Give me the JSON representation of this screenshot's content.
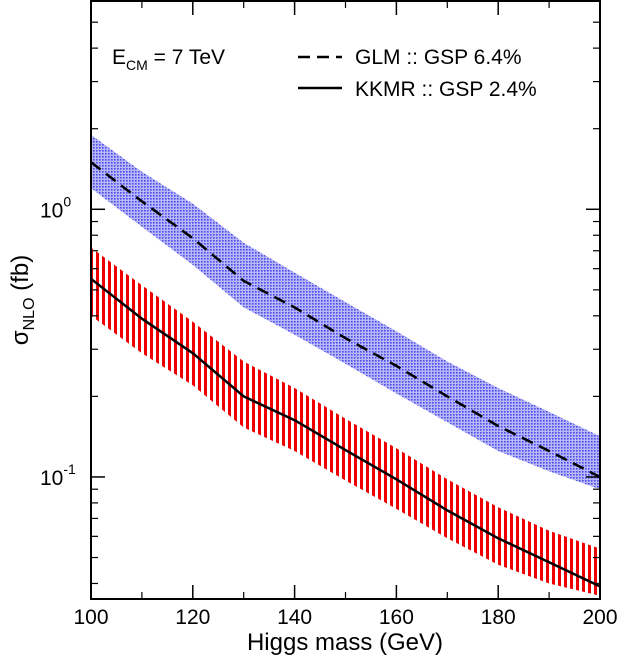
{
  "chart_data": {
    "type": "line",
    "xlabel": "Higgs mass (GeV)",
    "ylabel_symbol": "σ",
    "ylabel_sub": "NLO",
    "ylabel_unit": " (fb)",
    "annotation": {
      "main": "E",
      "sub": "CM",
      "rest": " = 7 TeV"
    },
    "x_range": [
      100,
      200
    ],
    "y_range": [
      0.035,
      6.0
    ],
    "y_scale": "log",
    "x_ticks": [
      100,
      120,
      140,
      160,
      180,
      200
    ],
    "y_major_ticks": [
      {
        "value": 1.0,
        "base": "10",
        "exp": "0"
      },
      {
        "value": 0.1,
        "base": "10",
        "exp": "-1"
      }
    ],
    "legend_position": "top-right",
    "series": [
      {
        "name": "GLM :: GSP 6.4%",
        "line_style": "dashed",
        "color": "#000000",
        "band_color": "#5a5af0",
        "band_style": "dotted",
        "x": [
          100,
          110,
          120,
          130,
          140,
          150,
          160,
          170,
          180,
          190,
          200
        ],
        "y": [
          1.5,
          1.07,
          0.78,
          0.54,
          0.43,
          0.33,
          0.26,
          0.2,
          0.155,
          0.125,
          0.1
        ],
        "upper": [
          1.9,
          1.38,
          1.05,
          0.75,
          0.58,
          0.45,
          0.35,
          0.27,
          0.215,
          0.175,
          0.142
        ],
        "lower": [
          1.2,
          0.86,
          0.62,
          0.43,
          0.34,
          0.265,
          0.205,
          0.16,
          0.125,
          0.105,
          0.09
        ]
      },
      {
        "name": "KKMR :: GSP 2.4%",
        "line_style": "solid",
        "color": "#000000",
        "band_color": "#ee0000",
        "band_style": "vertical-hatch",
        "x": [
          100,
          110,
          120,
          130,
          140,
          150,
          160,
          170,
          180,
          190,
          200
        ],
        "y": [
          0.55,
          0.39,
          0.29,
          0.2,
          0.163,
          0.126,
          0.098,
          0.075,
          0.059,
          0.048,
          0.039
        ],
        "upper": [
          0.72,
          0.52,
          0.38,
          0.27,
          0.215,
          0.165,
          0.128,
          0.098,
          0.077,
          0.063,
          0.054
        ],
        "lower": [
          0.4,
          0.29,
          0.22,
          0.153,
          0.125,
          0.097,
          0.076,
          0.059,
          0.047,
          0.04,
          0.036
        ]
      }
    ]
  }
}
